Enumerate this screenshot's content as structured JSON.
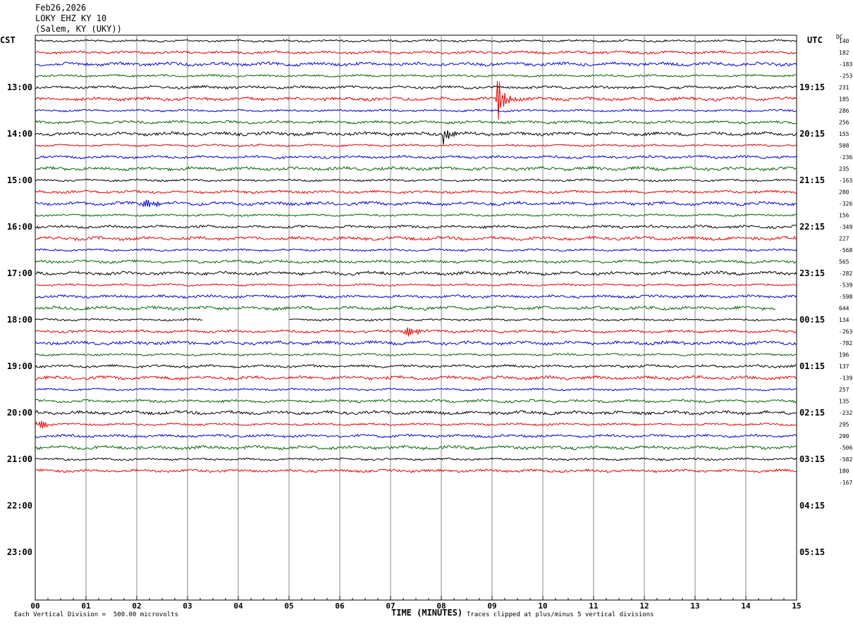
{
  "header": {
    "date": "Feb26,2026",
    "station": "LOKY EHZ KY 10",
    "location": "(Salem, KY (UKY))"
  },
  "left_axis_label": "CST",
  "right_axis_label": "UTC",
  "dc_label": "DC",
  "footer": {
    "scale_note": "Each Vertical Division =  500.00 microvolts",
    "x_title": "TIME (MINUTES)",
    "clip_note": "Traces clipped at plus/minus 5 vertical divisions"
  },
  "colors": {
    "trace_cycle": [
      "#000000",
      "#e60000",
      "#0000d0",
      "#006400"
    ],
    "grid": "#888888"
  },
  "chart_data": {
    "type": "line",
    "xlabel": "TIME (MINUTES)",
    "xlim": [
      0,
      15
    ],
    "x_ticks": [
      "00",
      "01",
      "02",
      "03",
      "04",
      "05",
      "06",
      "07",
      "08",
      "09",
      "10",
      "11",
      "12",
      "13",
      "14",
      "15"
    ],
    "left_hour_labels": [
      "13:00",
      "14:00",
      "15:00",
      "16:00",
      "17:00",
      "18:00",
      "19:00",
      "20:00",
      "21:00",
      "22:00",
      "23:00"
    ],
    "right_hour_labels": [
      "19:15",
      "20:15",
      "21:15",
      "22:15",
      "23:15",
      "00:15",
      "01:15",
      "02:15",
      "03:15",
      "04:15",
      "05:15"
    ],
    "traces_per_hour": 4,
    "first_trace_minute_offset": -60,
    "dc_offsets": [
      "140",
      "182",
      "-183",
      "-253",
      "231",
      "185",
      "286",
      "256",
      "155",
      "508",
      "-236",
      "235",
      "-163",
      "280",
      "-326",
      "156",
      "-349",
      "227",
      "-568",
      "565",
      "-282",
      "-539",
      "-598",
      "644",
      "134",
      "-263",
      "-782",
      "196",
      "137",
      "-139",
      "257",
      "135",
      "-232",
      "295",
      "200",
      "-506",
      "-582",
      "180",
      "-167"
    ],
    "events": [
      {
        "trace": 5,
        "minute": 9.1,
        "amplitude": 36,
        "type": "spike"
      },
      {
        "trace": 8,
        "minute": 8.05,
        "amplitude": 14,
        "type": "spike"
      },
      {
        "trace": 14,
        "minute": 2.25,
        "amplitude": 6,
        "type": "burst"
      },
      {
        "trace": 25,
        "minute": 7.4,
        "amplitude": 7,
        "type": "burst"
      },
      {
        "trace": 33,
        "minute": 0.1,
        "amplitude": 7,
        "type": "burst"
      }
    ],
    "gaps": [
      {
        "trace": 24,
        "from": 3.3,
        "to": 5.0
      }
    ],
    "trace_ends": [
      {
        "trace": 23,
        "end": 14.6
      },
      {
        "trace": 38,
        "end": 0.0
      }
    ]
  }
}
